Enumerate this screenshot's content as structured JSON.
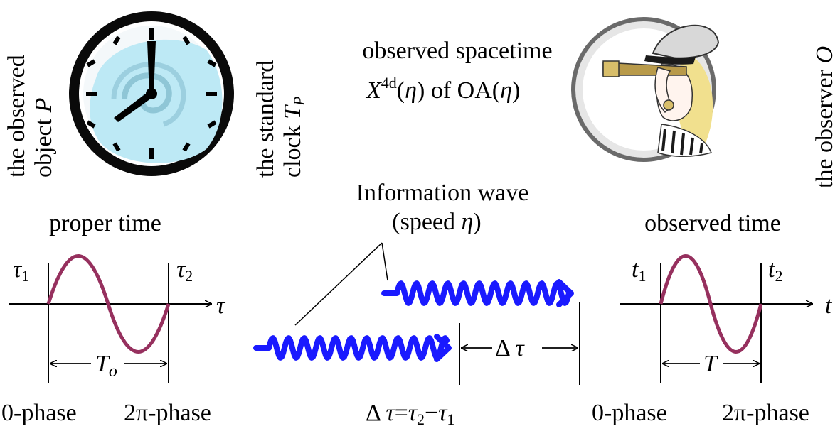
{
  "labels": {
    "object_line1": "the observed",
    "object_line2": "object",
    "object_symbol": "P",
    "clock_line1": "the standard",
    "clock_line2": "clock",
    "clock_symbol": "T",
    "clock_symbol_sub": "P",
    "spacetime_line1": "observed spacetime",
    "spacetime_X": "X",
    "spacetime_sup": "4d",
    "spacetime_eta1": "η",
    "spacetime_rest": "of OA(",
    "spacetime_eta2": "η",
    "observer_prefix": "the observer",
    "observer_symbol": "O",
    "info_wave_line1": "Information wave",
    "info_wave_line2_prefix": "(speed",
    "info_wave_eta": "η",
    "info_wave_line2_suffix": ")",
    "proper_time": "proper time",
    "observed_time": "observed time",
    "tau": "τ",
    "sub1": "1",
    "sub2": "2",
    "t": "t",
    "T_o_T": "T",
    "T_o_sub": "o",
    "T": "T",
    "delta_tau": "Δ τ",
    "phase0_left": "0-phase",
    "phase2pi_left": "2π-phase",
    "phase0_right": "0-phase",
    "phase2pi_right": "2π-phase",
    "formula_delta": "Δ",
    "formula_tau": "τ",
    "formula_eq": "=",
    "formula_minus": "−"
  },
  "colors": {
    "wave": "#1a1aff",
    "sine": "#96305e",
    "clock_face": "#bde9f5",
    "clock_rim": "#0a0a0a"
  },
  "icons": [
    "clock-icon",
    "observer-telescope-icon"
  ]
}
